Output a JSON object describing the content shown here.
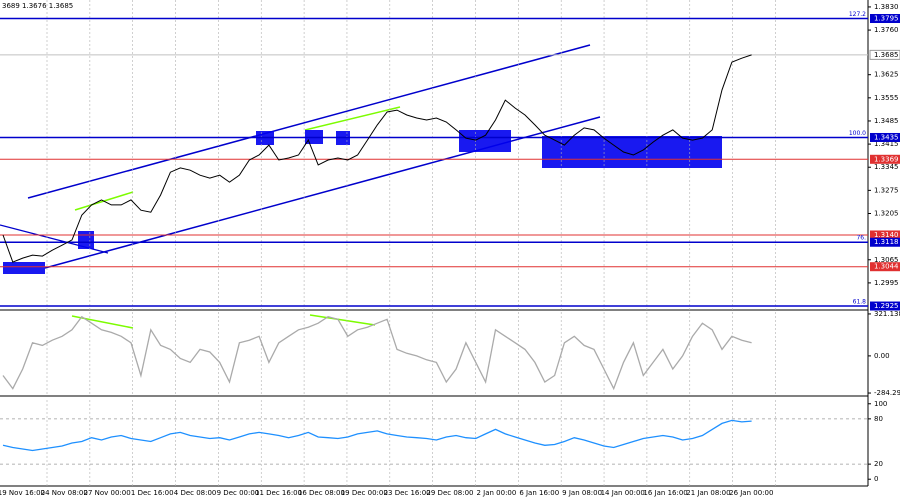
{
  "chart_data": [
    {
      "type": "line",
      "title": "3689 1.3676 1.3685",
      "color": "#000000",
      "values": [
        1.314,
        1.3058,
        1.307,
        1.3079,
        1.3076,
        1.3094,
        1.3109,
        1.3125,
        1.32,
        1.3231,
        1.3246,
        1.3231,
        1.3231,
        1.3246,
        1.3215,
        1.3209,
        1.3261,
        1.333,
        1.3343,
        1.3336,
        1.3321,
        1.3312,
        1.3321,
        1.33,
        1.3321,
        1.3367,
        1.3382,
        1.3412,
        1.3367,
        1.3373,
        1.3382,
        1.3427,
        1.3352,
        1.3367,
        1.3373,
        1.3367,
        1.3382,
        1.3427,
        1.3473,
        1.3512,
        1.3518,
        1.3503,
        1.3494,
        1.3488,
        1.3494,
        1.3482,
        1.3458,
        1.3433,
        1.3427,
        1.3442,
        1.3488,
        1.3548,
        1.3524,
        1.3503,
        1.3473,
        1.3442,
        1.3427,
        1.3412,
        1.3442,
        1.3464,
        1.3458,
        1.3433,
        1.3412,
        1.3391,
        1.3382,
        1.3397,
        1.3421,
        1.3442,
        1.3458,
        1.3433,
        1.3427,
        1.3433,
        1.3458,
        1.3579,
        1.3663,
        1.3675,
        1.3685
      ],
      "ylim": [
        1.2913,
        1.3851
      ],
      "yticks": [
        {
          "value": 1.383,
          "label": "1.3830"
        },
        {
          "value": 1.376,
          "label": "1.3760"
        },
        {
          "value": 1.3625,
          "label": "1.3625"
        },
        {
          "value": 1.3555,
          "label": "1.3555"
        },
        {
          "value": 1.3485,
          "label": "1.3485"
        },
        {
          "value": 1.3415,
          "label": "1.3415"
        },
        {
          "value": 1.3345,
          "label": "1.3345"
        },
        {
          "value": 1.3275,
          "label": "1.3275"
        },
        {
          "value": 1.3205,
          "label": "1.3205"
        },
        {
          "value": 1.3065,
          "label": "1.3065"
        },
        {
          "value": 1.2995,
          "label": "1.2995"
        }
      ],
      "levels": [
        {
          "value": 1.3795,
          "label": "1.3795",
          "color": "#0000cc",
          "fib_label": "127.2"
        },
        {
          "value": 1.3685,
          "label": "1.3685",
          "color": "#c0c0c0"
        },
        {
          "value": 1.3435,
          "label": "1.3435",
          "color": "#0000cc",
          "fib_label": "100.0"
        },
        {
          "value": 1.3369,
          "label": "1.3369",
          "color": "#e03030"
        },
        {
          "value": 1.314,
          "label": "1.3140",
          "color": "#e03030"
        },
        {
          "value": 1.3118,
          "label": "1.3118",
          "color": "#0000cc",
          "fib_label": "76."
        },
        {
          "value": 1.3044,
          "label": "1.3044",
          "color": "#e03030"
        },
        {
          "value": 1.2925,
          "label": "1.2925",
          "color": "#0000cc",
          "fib_label": "61.8"
        }
      ]
    },
    {
      "type": "line",
      "color": "#aaaaaa",
      "values": [
        -150,
        -250,
        -100,
        100,
        80,
        120,
        150,
        200,
        300,
        250,
        200,
        180,
        150,
        100,
        -150,
        200,
        80,
        50,
        -20,
        -50,
        50,
        30,
        -50,
        -200,
        100,
        120,
        150,
        -50,
        100,
        150,
        200,
        220,
        250,
        300,
        280,
        150,
        200,
        220,
        250,
        280,
        50,
        20,
        0,
        -30,
        -50,
        -200,
        -100,
        100,
        -50,
        -200,
        200,
        150,
        100,
        50,
        -50,
        -200,
        -150,
        100,
        150,
        80,
        50,
        -100,
        -250,
        -50,
        100,
        -150,
        -50,
        50,
        -100,
        0,
        150,
        250,
        200,
        50,
        150,
        120,
        100
      ],
      "ylim": [
        -307,
        336
      ],
      "yticks": [
        {
          "value": 321.1386,
          "label": "321.1386"
        },
        {
          "value": 0,
          "label": "0.00"
        },
        {
          "value": -284.29,
          "label": "-284.290"
        }
      ]
    },
    {
      "type": "line",
      "color": "#1e90ff",
      "values": [
        45,
        42,
        40,
        38,
        40,
        42,
        44,
        48,
        50,
        55,
        52,
        56,
        58,
        54,
        52,
        50,
        55,
        60,
        62,
        58,
        56,
        54,
        55,
        52,
        56,
        60,
        62,
        60,
        58,
        55,
        58,
        62,
        56,
        55,
        54,
        56,
        60,
        62,
        64,
        60,
        58,
        56,
        55,
        54,
        52,
        56,
        58,
        55,
        54,
        60,
        66,
        60,
        56,
        52,
        48,
        45,
        46,
        50,
        55,
        52,
        48,
        44,
        42,
        46,
        50,
        54,
        56,
        58,
        56,
        52,
        54,
        58,
        66,
        74,
        78,
        76,
        77
      ],
      "ylim": [
        -9,
        105
      ],
      "yticks": [
        100,
        80,
        20,
        0
      ],
      "dashed_levels": [
        80,
        20
      ],
      "time_labels": [
        "19 Nov 16:00",
        "24 Nov 08:00",
        "27 Nov 00:00",
        "1 Dec 16:00",
        "4 Dec 08:00",
        "9 Dec 00:00",
        "11 Dec 16:00",
        "16 Dec 08:00",
        "19 Dec 00:00",
        "23 Dec 16:00",
        "29 Dec 08:00",
        "2 Jan 00:00",
        "6 Jan 16:00",
        "9 Jan 08:00",
        "14 Jan 00:00",
        "16 Jan 16:00",
        "21 Jan 08:00",
        "26 Jan 00:00"
      ]
    }
  ]
}
